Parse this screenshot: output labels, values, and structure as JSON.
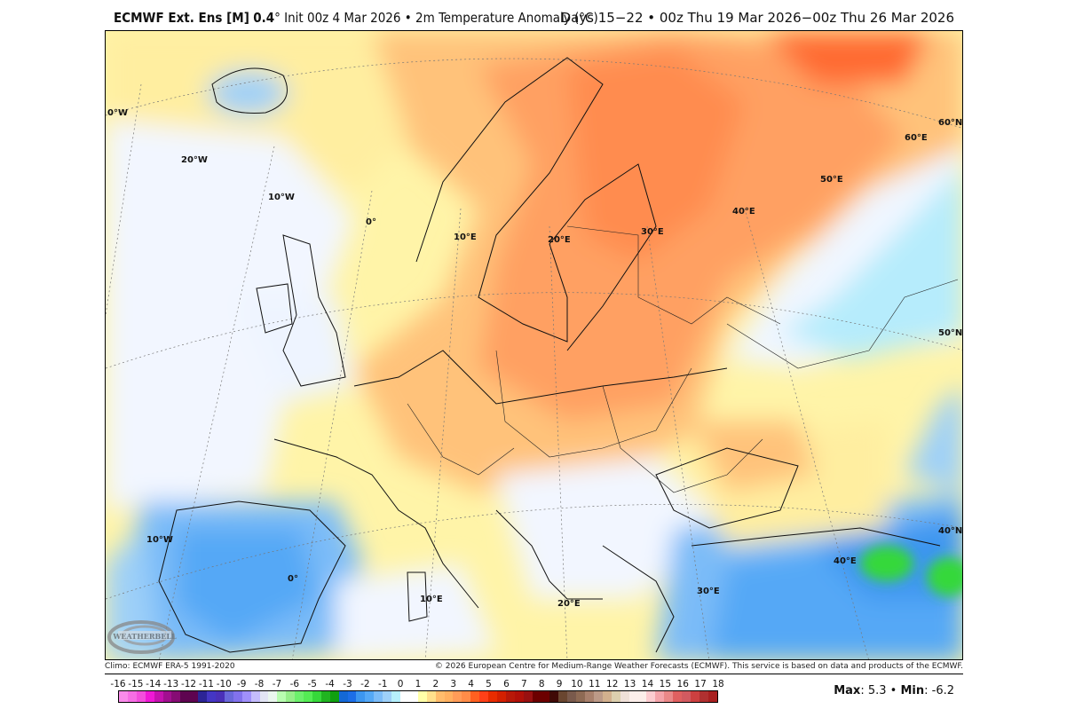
{
  "header": {
    "model": "ECMWF Ext. Ens [M]",
    "resolution": "0.4",
    "degree_mark": "°",
    "init": "Init 00z 4 Mar 2026",
    "bullet": "•",
    "field": "2m Temperature Anomaly (°C)",
    "valid": "Days 15−22 • 00z Thu 19 Mar 2026−00z Thu 26 Mar 2026"
  },
  "map": {
    "region": "Europe",
    "grid_labels": [
      "0°W",
      "20°W",
      "10°W",
      "0°",
      "10°E",
      "20°E",
      "30°E",
      "40°E",
      "50°E",
      "60°E",
      "60°N",
      "50°N",
      "40°N",
      "10°W",
      "0°",
      "10°E",
      "20°E",
      "30°E",
      "40°E"
    ],
    "watermark": "WeatherBELL Analytics LLC"
  },
  "footer": {
    "climo": "Climo: ECMWF ERA-5 1991-2020",
    "copyright": "© 2026 European Centre for Medium-Range Weather Forecasts (ECMWF). This service is based on data and products of the ECMWF."
  },
  "colorbar": {
    "ticks": [
      "-16",
      "-15",
      "-14",
      "-13",
      "-12",
      "-11",
      "-10",
      "-9",
      "-8",
      "-7",
      "-6",
      "-5",
      "-4",
      "-3",
      "-2",
      "-1",
      "0",
      "1",
      "2",
      "3",
      "4",
      "5",
      "6",
      "7",
      "8",
      "9",
      "10",
      "11",
      "12",
      "13",
      "14",
      "15",
      "16",
      "17",
      "18"
    ],
    "colors": [
      "#f98bea",
      "#f66ee4",
      "#f34edc",
      "#f018d6",
      "#c612b0",
      "#a20f90",
      "#860c74",
      "#5e0450",
      "#5e0450",
      "#2c2496",
      "#4436c4",
      "#4a30b8",
      "#6a68da",
      "#8272ec",
      "#a090fa",
      "#c4bcfc",
      "#e2e4f4",
      "#eaf6ee",
      "#b8fcb0",
      "#96ee8a",
      "#6cf06c",
      "#54ec54",
      "#36d83a",
      "#20b420",
      "#10a010",
      "#1468d6",
      "#1c6ee8",
      "#3c96f0",
      "#54a8f6",
      "#7cbcf8",
      "#9ed0f8",
      "#b6f0fc",
      "#ffffff",
      "#ffffff",
      "#ffffa8",
      "#ffe08c",
      "#ffbc6c",
      "#ffb060",
      "#ff9c58",
      "#ff8c48",
      "#ff6020",
      "#ff4018",
      "#e82c00",
      "#d42000",
      "#b81808",
      "#b01008",
      "#981010",
      "#6c0000",
      "#6c0000",
      "#400a06",
      "#6a4630",
      "#7a5a4c",
      "#8e6a54",
      "#a8806c",
      "#bc9a88",
      "#d2b08e",
      "#dccfae",
      "#f0e0d8",
      "#fceeea",
      "#fceeea",
      "#fcccd0",
      "#f4a4aa",
      "#ea8888",
      "#e06060",
      "#d25a60",
      "#cc4040",
      "#b03030",
      "#a82020"
    ]
  },
  "stats": {
    "max_label": "Max",
    "max": "5.3",
    "min_label": "Min",
    "min": "-6.2"
  }
}
